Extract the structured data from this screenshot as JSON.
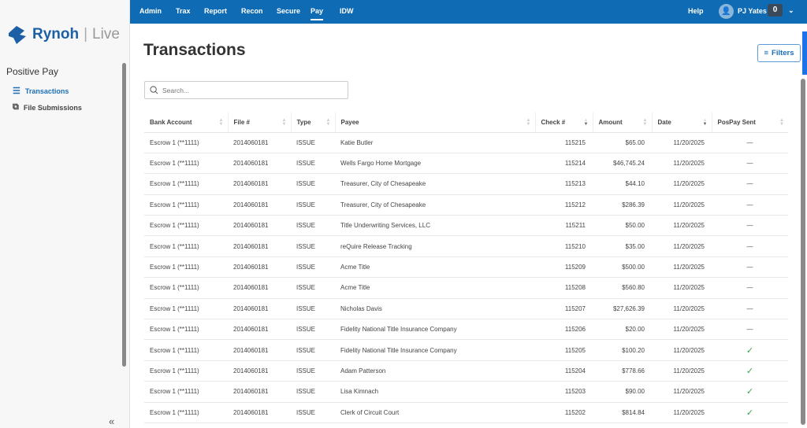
{
  "brand": {
    "name": "Rynoh",
    "product": "Live"
  },
  "sidebar": {
    "section": "Positive Pay",
    "items": [
      {
        "label": "Transactions",
        "icon": "list-icon",
        "active": true
      },
      {
        "label": "File Submissions",
        "icon": "copy-icon",
        "active": false
      }
    ]
  },
  "topnav": {
    "tabs": [
      "Admin",
      "Trax",
      "Report",
      "Recon",
      "Secure",
      "Pay",
      "IDW"
    ],
    "active": "Pay",
    "help": "Help",
    "user": "PJ Yates",
    "count": "0"
  },
  "page": {
    "title": "Transactions",
    "filters": "Filters",
    "search_placeholder": "Search..."
  },
  "table": {
    "columns": [
      "Bank Account",
      "File #",
      "Type",
      "Payee",
      "Check #",
      "Amount",
      "Date",
      "PosPay Sent"
    ],
    "rows": [
      [
        "Escrow 1 (**1111)",
        "2014060181",
        "ISSUE",
        "Katie Butler",
        "115215",
        "$65.00",
        "11/20/2025",
        "—"
      ],
      [
        "Escrow 1 (**1111)",
        "2014060181",
        "ISSUE",
        "Wells Fargo Home Mortgage",
        "115214",
        "$46,745.24",
        "11/20/2025",
        "—"
      ],
      [
        "Escrow 1 (**1111)",
        "2014060181",
        "ISSUE",
        "Treasurer, City of Chesapeake",
        "115213",
        "$44.10",
        "11/20/2025",
        "—"
      ],
      [
        "Escrow 1 (**1111)",
        "2014060181",
        "ISSUE",
        "Treasurer, City of Chesapeake",
        "115212",
        "$286.39",
        "11/20/2025",
        "—"
      ],
      [
        "Escrow 1 (**1111)",
        "2014060181",
        "ISSUE",
        "Title Underwriting Services, LLC",
        "115211",
        "$50.00",
        "11/20/2025",
        "—"
      ],
      [
        "Escrow 1 (**1111)",
        "2014060181",
        "ISSUE",
        "reQuire Release Tracking",
        "115210",
        "$35.00",
        "11/20/2025",
        "—"
      ],
      [
        "Escrow 1 (**1111)",
        "2014060181",
        "ISSUE",
        "Acme Title",
        "115209",
        "$500.00",
        "11/20/2025",
        "—"
      ],
      [
        "Escrow 1 (**1111)",
        "2014060181",
        "ISSUE",
        "Acme Title",
        "115208",
        "$560.80",
        "11/20/2025",
        "—"
      ],
      [
        "Escrow 1 (**1111)",
        "2014060181",
        "ISSUE",
        "Nicholas Davis",
        "115207",
        "$27,626.39",
        "11/20/2025",
        "—"
      ],
      [
        "Escrow 1 (**1111)",
        "2014060181",
        "ISSUE",
        "Fidelity National Title Insurance Company",
        "115206",
        "$20.00",
        "11/20/2025",
        "—"
      ],
      [
        "Escrow 1 (**1111)",
        "2014060181",
        "ISSUE",
        "Fidelity National Title Insurance Company",
        "115205",
        "$100.20",
        "11/20/2025",
        "✓"
      ],
      [
        "Escrow 1 (**1111)",
        "2014060181",
        "ISSUE",
        "Adam Patterson",
        "115204",
        "$778.66",
        "11/20/2025",
        "✓"
      ],
      [
        "Escrow 1 (**1111)",
        "2014060181",
        "ISSUE",
        "Lisa Kimnach",
        "115203",
        "$90.00",
        "11/20/2025",
        "✓"
      ],
      [
        "Escrow 1 (**1111)",
        "2014060181",
        "ISSUE",
        "Clerk of Circuit Court",
        "115202",
        "$814.84",
        "11/20/2025",
        "✓"
      ]
    ]
  },
  "colors": {
    "topbar": "#0f6bb3",
    "accent": "#1d6fb8",
    "check": "#3aa04a"
  }
}
